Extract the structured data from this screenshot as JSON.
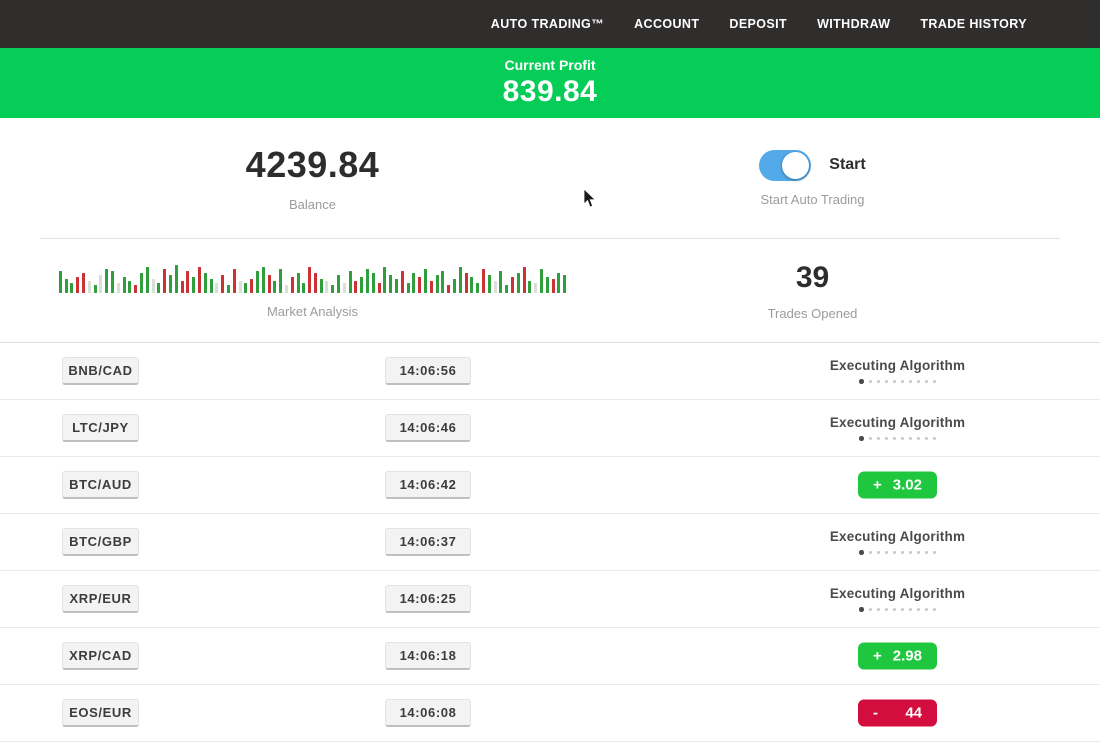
{
  "nav": {
    "items": [
      {
        "id": "auto-trading",
        "label": "AUTO TRADING™"
      },
      {
        "id": "account",
        "label": "ACCOUNT"
      },
      {
        "id": "deposit",
        "label": "DEPOSIT"
      },
      {
        "id": "withdraw",
        "label": "WITHDRAW"
      },
      {
        "id": "trade-history",
        "label": "TRADE HISTORY"
      }
    ]
  },
  "profit_banner": {
    "label": "Current Profit",
    "value": "839.84"
  },
  "stats": {
    "balance": {
      "value": "4239.84",
      "label": "Balance"
    },
    "auto_trading": {
      "toggle_label": "Start",
      "label": "Start Auto Trading",
      "enabled": true
    },
    "market": {
      "label": "Market Analysis"
    },
    "trades_opened": {
      "value": "39",
      "label": "Trades Opened"
    }
  },
  "trades": {
    "executing_label": "Executing Algorithm",
    "progress_dots": 10,
    "active_dot_index": 0,
    "rows": [
      {
        "pair": "BNB/CAD",
        "time": "14:06:56",
        "status": "executing"
      },
      {
        "pair": "LTC/JPY",
        "time": "14:06:46",
        "status": "executing"
      },
      {
        "pair": "BTC/AUD",
        "time": "14:06:42",
        "status": "gain",
        "sign": "+",
        "value": "3.02"
      },
      {
        "pair": "BTC/GBP",
        "time": "14:06:37",
        "status": "executing"
      },
      {
        "pair": "XRP/EUR",
        "time": "14:06:25",
        "status": "executing"
      },
      {
        "pair": "XRP/CAD",
        "time": "14:06:18",
        "status": "gain",
        "sign": "+",
        "value": "2.98"
      },
      {
        "pair": "EOS/EUR",
        "time": "14:06:08",
        "status": "loss",
        "sign": "-",
        "value": "44"
      }
    ]
  },
  "colors": {
    "nav_bg": "#302d2d",
    "banner_green": "#05cd57",
    "gain_green": "#1fc73e",
    "loss_red": "#d30e3e",
    "toggle_blue": "#54a9e9",
    "bar_green": "#2f9e3d",
    "bar_red": "#cc3134",
    "bar_light": "#d9ded9"
  },
  "chart_data": {
    "type": "bar",
    "title": "Market Analysis",
    "xlabel": "",
    "ylabel": "",
    "grid": false,
    "legend": false,
    "note": "decorative candlestick-style ticker strip; bars as [color g|r|l, height px of 30 max]",
    "bars": [
      [
        "g",
        22
      ],
      [
        "g",
        14
      ],
      [
        "g",
        10
      ],
      [
        "r",
        16
      ],
      [
        "r",
        20
      ],
      [
        "l",
        12
      ],
      [
        "g",
        8
      ],
      [
        "l",
        18
      ],
      [
        "g",
        24
      ],
      [
        "g",
        22
      ],
      [
        "l",
        10
      ],
      [
        "g",
        16
      ],
      [
        "g",
        12
      ],
      [
        "r",
        8
      ],
      [
        "g",
        20
      ],
      [
        "g",
        26
      ],
      [
        "l",
        14
      ],
      [
        "g",
        10
      ],
      [
        "r",
        24
      ],
      [
        "g",
        18
      ],
      [
        "g",
        28
      ],
      [
        "r",
        12
      ],
      [
        "r",
        22
      ],
      [
        "g",
        16
      ],
      [
        "r",
        26
      ],
      [
        "g",
        20
      ],
      [
        "g",
        14
      ],
      [
        "l",
        10
      ],
      [
        "r",
        18
      ],
      [
        "g",
        8
      ],
      [
        "r",
        24
      ],
      [
        "l",
        12
      ],
      [
        "g",
        10
      ],
      [
        "r",
        14
      ],
      [
        "g",
        22
      ],
      [
        "g",
        26
      ],
      [
        "r",
        18
      ],
      [
        "g",
        12
      ],
      [
        "g",
        24
      ],
      [
        "l",
        8
      ],
      [
        "r",
        16
      ],
      [
        "g",
        20
      ],
      [
        "g",
        10
      ],
      [
        "r",
        26
      ],
      [
        "r",
        20
      ],
      [
        "g",
        14
      ],
      [
        "l",
        12
      ],
      [
        "g",
        8
      ],
      [
        "g",
        18
      ],
      [
        "l",
        10
      ],
      [
        "g",
        22
      ],
      [
        "r",
        12
      ],
      [
        "g",
        16
      ],
      [
        "g",
        24
      ],
      [
        "g",
        20
      ],
      [
        "r",
        10
      ],
      [
        "g",
        26
      ],
      [
        "g",
        18
      ],
      [
        "g",
        14
      ],
      [
        "r",
        22
      ],
      [
        "g",
        10
      ],
      [
        "g",
        20
      ],
      [
        "r",
        16
      ],
      [
        "g",
        24
      ],
      [
        "r",
        12
      ],
      [
        "g",
        18
      ],
      [
        "g",
        22
      ],
      [
        "r",
        8
      ],
      [
        "g",
        14
      ],
      [
        "g",
        26
      ],
      [
        "r",
        20
      ],
      [
        "g",
        16
      ],
      [
        "g",
        10
      ],
      [
        "r",
        24
      ],
      [
        "g",
        18
      ],
      [
        "l",
        12
      ],
      [
        "g",
        22
      ],
      [
        "g",
        8
      ],
      [
        "r",
        16
      ],
      [
        "g",
        20
      ],
      [
        "r",
        26
      ],
      [
        "g",
        12
      ],
      [
        "l",
        10
      ],
      [
        "g",
        24
      ],
      [
        "g",
        16
      ],
      [
        "r",
        14
      ],
      [
        "g",
        20
      ],
      [
        "g",
        18
      ]
    ]
  }
}
